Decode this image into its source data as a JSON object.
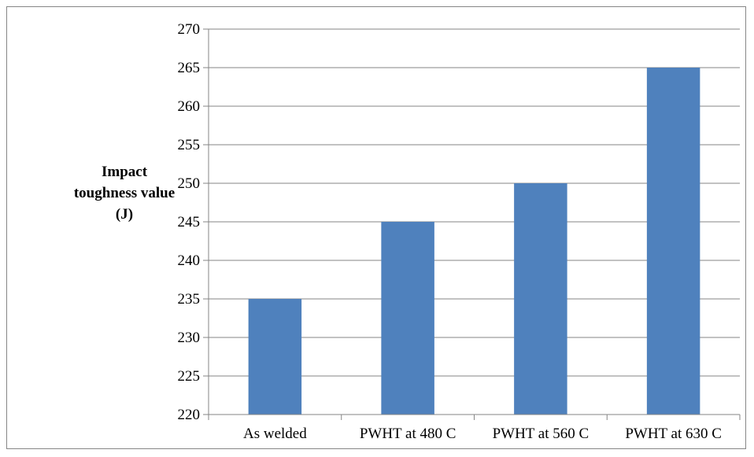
{
  "chart_data": {
    "type": "bar",
    "categories": [
      "As welded",
      "PWHT at 480 C",
      "PWHT at 560 C",
      "PWHT at 630 C"
    ],
    "series": [
      {
        "values": [
          235,
          245,
          250,
          265
        ],
        "color": "#4F81BD"
      }
    ],
    "title": "",
    "xlabel": "",
    "ylabel": "Impact toughness value (J)",
    "ylabel_lines": [
      "Impact",
      "toughness value",
      "(J)"
    ],
    "ylim": [
      220,
      270
    ],
    "ytick_step": 5,
    "yticks": [
      "220",
      "225",
      "230",
      "235",
      "240",
      "245",
      "250",
      "255",
      "260",
      "265",
      "270"
    ],
    "grid": true,
    "legend": "none"
  }
}
